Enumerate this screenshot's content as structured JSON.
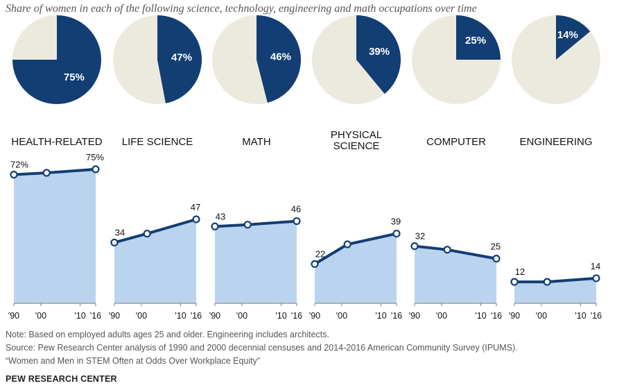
{
  "title": "Share of women in each of the following science, technology, engineering and math occupations over time",
  "colors": {
    "pie_fill": "#123e73",
    "pie_bg": "#ece9df",
    "area_fill": "#bad4f0",
    "line": "#123e73",
    "text": "#111111"
  },
  "chart_data": [
    {
      "type": "pie",
      "slices": [
        {
          "category": "HEALTH-RELATED",
          "lines": [
            "HEALTH-RELATED"
          ],
          "value": 75,
          "label": "75%"
        },
        {
          "category": "LIFE SCIENCE",
          "lines": [
            "LIFE SCIENCE"
          ],
          "value": 47,
          "label": "47%"
        },
        {
          "category": "MATH",
          "lines": [
            "MATH"
          ],
          "value": 46,
          "label": "46%"
        },
        {
          "category": "PHYSICAL SCIENCE",
          "lines": [
            "PHYSICAL",
            "SCIENCE"
          ],
          "value": 39,
          "label": "39%"
        },
        {
          "category": "COMPUTER",
          "lines": [
            "COMPUTER"
          ],
          "value": 25,
          "label": "25%"
        },
        {
          "category": "ENGINEERING",
          "lines": [
            "ENGINEERING"
          ],
          "value": 14,
          "label": "14%"
        }
      ]
    },
    {
      "type": "area",
      "x_ticks": [
        "'90",
        "'00",
        "'10",
        "'16"
      ],
      "x_values": [
        1990,
        2000,
        2016
      ],
      "ylim": [
        0,
        80
      ],
      "series": [
        {
          "name": "HEALTH-RELATED",
          "values": [
            72,
            73,
            75
          ],
          "labels": [
            "72%",
            "",
            "75%"
          ]
        },
        {
          "name": "LIFE SCIENCE",
          "values": [
            34,
            39,
            47
          ],
          "labels": [
            "34",
            "",
            "47"
          ]
        },
        {
          "name": "MATH",
          "values": [
            43,
            44,
            46
          ],
          "labels": [
            "43",
            "",
            "46"
          ]
        },
        {
          "name": "PHYSICAL SCIENCE",
          "values": [
            22,
            33,
            39
          ],
          "labels": [
            "22",
            "",
            "39"
          ]
        },
        {
          "name": "COMPUTER",
          "values": [
            32,
            30,
            25
          ],
          "labels": [
            "32",
            "",
            "25"
          ]
        },
        {
          "name": "ENGINEERING",
          "values": [
            12,
            12,
            14
          ],
          "labels": [
            "12",
            "",
            "14"
          ]
        }
      ]
    }
  ],
  "footer": {
    "note": "Note: Based on employed adults ages 25 and older. Engineering includes architects.",
    "source": "Source: Pew Research Center analysis of 1990 and 2000 decennial censuses and 2014-2016 American Community Survey (IPUMS).",
    "report": "“Women and Men in STEM Often at Odds Over Workplace Equity”",
    "brand": "PEW RESEARCH CENTER"
  }
}
